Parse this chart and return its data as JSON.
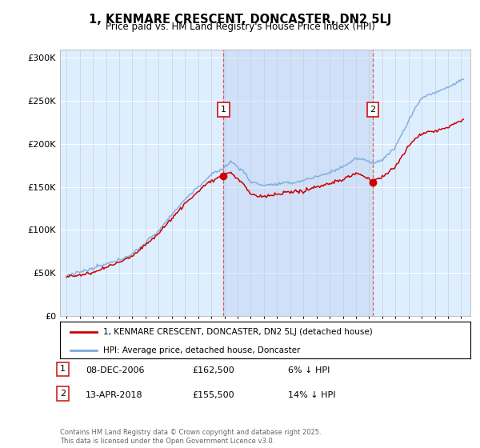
{
  "title": "1, KENMARE CRESCENT, DONCASTER, DN2 5LJ",
  "subtitle": "Price paid vs. HM Land Registry's House Price Index (HPI)",
  "legend_line1": "1, KENMARE CRESCENT, DONCASTER, DN2 5LJ (detached house)",
  "legend_line2": "HPI: Average price, detached house, Doncaster",
  "sale1_date": "08-DEC-2006",
  "sale1_price": 162500,
  "sale1_label": "6% ↓ HPI",
  "sale2_date": "13-APR-2018",
  "sale2_price": 155500,
  "sale2_label": "14% ↓ HPI",
  "sale1_t": 2006.92,
  "sale2_t": 2018.28,
  "footnote": "Contains HM Land Registry data © Crown copyright and database right 2025.\nThis data is licensed under the Open Government Licence v3.0.",
  "ylim": [
    0,
    310000
  ],
  "yticks": [
    0,
    50000,
    100000,
    150000,
    200000,
    250000,
    300000
  ],
  "plot_bg": "#ddeeff",
  "shade_color": "#ccddf5",
  "red_color": "#cc0000",
  "blue_color": "#7aaadd"
}
